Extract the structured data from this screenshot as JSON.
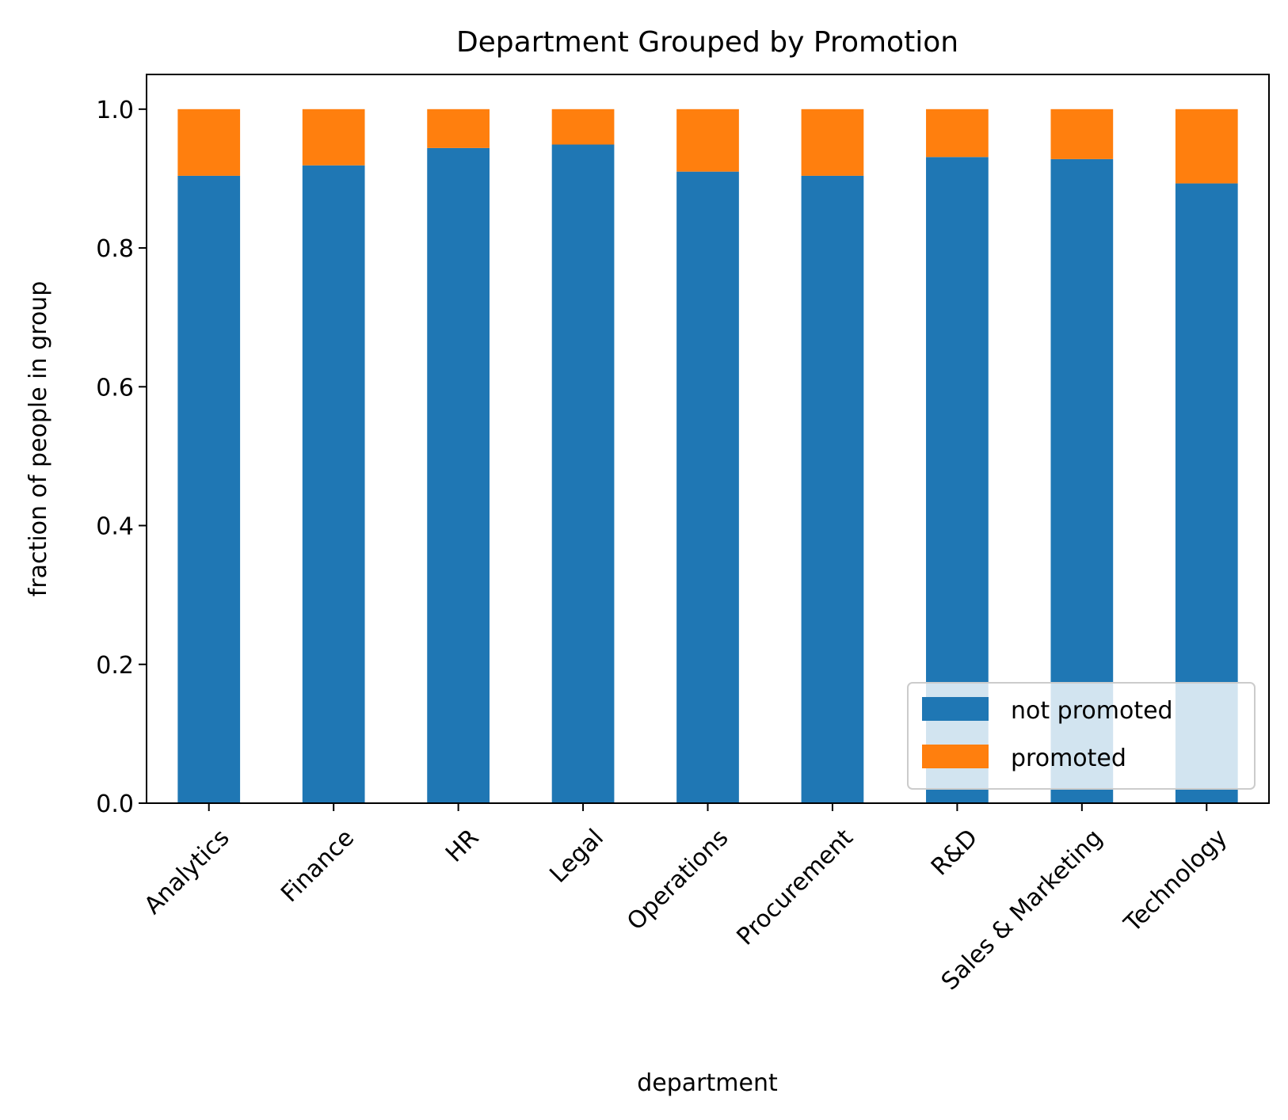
{
  "chart_data": {
    "type": "bar",
    "stacked": true,
    "title": "Department Grouped by Promotion",
    "xlabel": "department",
    "ylabel": "fraction of people in group",
    "ylim": [
      0,
      1.05
    ],
    "yticks": [
      "0.0",
      "0.2",
      "0.4",
      "0.6",
      "0.8",
      "1.0"
    ],
    "categories": [
      "Analytics",
      "Finance",
      "HR",
      "Legal",
      "Operations",
      "Procurement",
      "R&D",
      "Sales & Marketing",
      "Technology"
    ],
    "series": [
      {
        "name": "not promoted",
        "color": "#1f77b4",
        "values": [
          0.904,
          0.919,
          0.944,
          0.949,
          0.91,
          0.904,
          0.931,
          0.928,
          0.893
        ]
      },
      {
        "name": "promoted",
        "color": "#ff7f0e",
        "values": [
          0.096,
          0.081,
          0.056,
          0.051,
          0.09,
          0.096,
          0.069,
          0.072,
          0.107
        ]
      }
    ],
    "grid": false,
    "legend_position": "lower right",
    "tick_label_rotation": 45
  }
}
